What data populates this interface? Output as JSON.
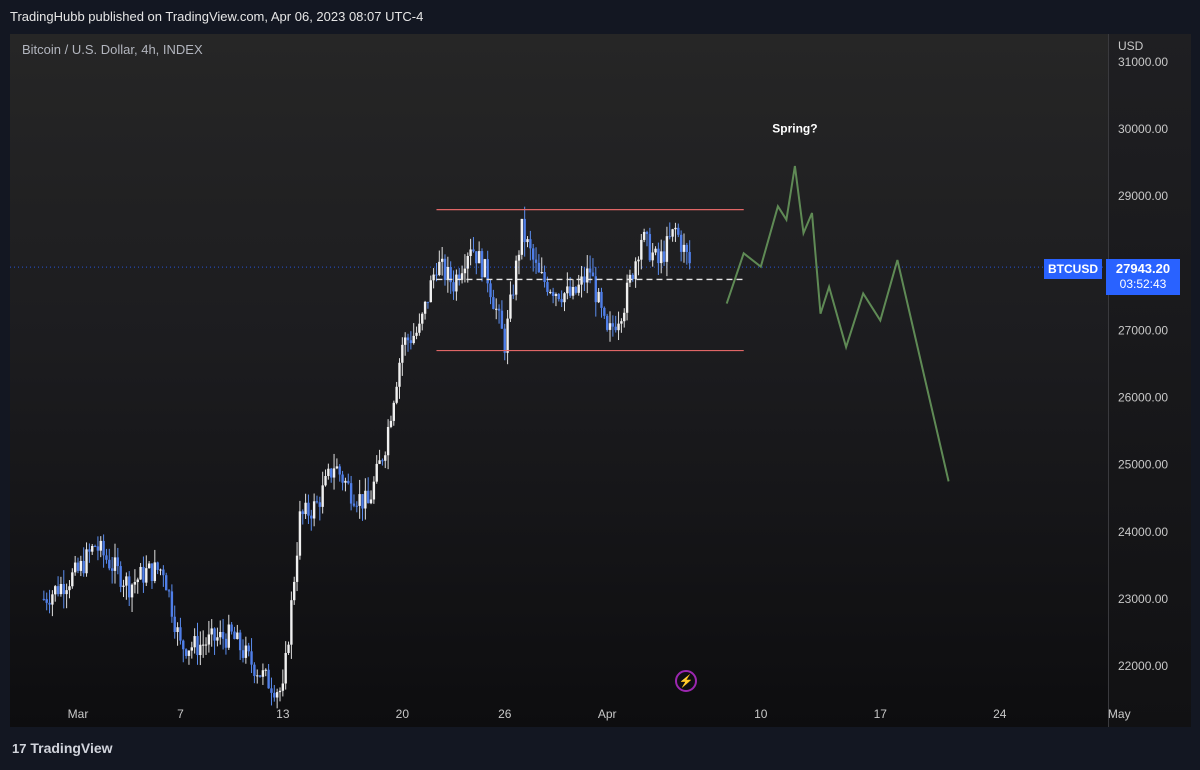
{
  "header": {
    "published_text": "TradingHubb published on TradingView.com, Apr 06, 2023 08:07 UTC-4"
  },
  "symbol": {
    "title": "Bitcoin / U.S. Dollar, 4h, INDEX"
  },
  "axis": {
    "currency": "USD"
  },
  "price_tag": {
    "symbol": "BTCUSD",
    "price": "27943.20",
    "countdown": "03:52:43"
  },
  "footer": {
    "brand": "TradingView"
  },
  "icons": {
    "logo": "tradingview-logo-icon",
    "ideas": "lightning-icon"
  },
  "colors": {
    "range_lines": "#e06666",
    "projection": "#5f8a55",
    "price_tag": "#2962ff"
  },
  "chart_data": {
    "type": "candlestick",
    "title": "Bitcoin / U.S. Dollar, 4h, INDEX",
    "y_unit": "USD",
    "ylim": [
      21600,
      31200
    ],
    "y_ticks": [
      "22000.00",
      "23000.00",
      "24000.00",
      "25000.00",
      "26000.00",
      "27000.00",
      "28000.00",
      "29000.00",
      "30000.00",
      "31000.00"
    ],
    "x_ticks": [
      "Mar",
      "7",
      "13",
      "20",
      "26",
      "Apr",
      "10",
      "17",
      "24",
      "May"
    ],
    "last_price": 27943.2,
    "ohlc_path": [
      [
        "2023-02-27",
        23000
      ],
      [
        "2023-03-01",
        23400
      ],
      [
        "2023-03-02",
        23800
      ],
      [
        "2023-03-03",
        23500
      ],
      [
        "2023-03-04",
        23200
      ],
      [
        "2023-03-05",
        23400
      ],
      [
        "2023-03-06",
        23450
      ],
      [
        "2023-03-07",
        22300
      ],
      [
        "2023-03-08",
        22300
      ],
      [
        "2023-03-09",
        22400
      ],
      [
        "2023-03-10",
        22450
      ],
      [
        "2023-03-11",
        22100
      ],
      [
        "2023-03-12",
        21800
      ],
      [
        "2023-03-13",
        21600
      ],
      [
        "2023-03-14",
        24200
      ],
      [
        "2023-03-15",
        24400
      ],
      [
        "2023-03-16",
        25000
      ],
      [
        "2023-03-17",
        24600
      ],
      [
        "2023-03-18",
        24400
      ],
      [
        "2023-03-19",
        25300
      ],
      [
        "2023-03-20",
        26800
      ],
      [
        "2023-03-21",
        27000
      ],
      [
        "2023-03-22",
        28000
      ],
      [
        "2023-03-23",
        27700
      ],
      [
        "2023-03-24",
        28300
      ],
      [
        "2023-03-25",
        27800
      ],
      [
        "2023-03-26",
        26800
      ],
      [
        "2023-03-27",
        28500
      ],
      [
        "2023-03-28",
        27800
      ],
      [
        "2023-03-29",
        27600
      ],
      [
        "2023-03-30",
        27500
      ],
      [
        "2023-03-31",
        27900
      ],
      [
        "2023-04-01",
        26900
      ],
      [
        "2023-04-02",
        27400
      ],
      [
        "2023-04-03",
        28400
      ],
      [
        "2023-04-04",
        28000
      ],
      [
        "2023-04-05",
        28500
      ],
      [
        "2023-04-06",
        27900
      ]
    ],
    "range_box": {
      "top": 28800,
      "bottom": 26700,
      "from": "2023-03-22",
      "to": "2023-04-09"
    },
    "midline": {
      "value": 27760,
      "from": "2023-03-22",
      "to": "2023-04-09"
    },
    "projection_path": [
      [
        "2023-04-08",
        27400
      ],
      [
        "2023-04-09",
        28150
      ],
      [
        "2023-04-10",
        27950
      ],
      [
        "2023-04-11",
        28850
      ],
      [
        "2023-04-11T12",
        28650
      ],
      [
        "2023-04-12",
        29450
      ],
      [
        "2023-04-12T12",
        28450
      ],
      [
        "2023-04-13",
        28750
      ],
      [
        "2023-04-13T12",
        27250
      ],
      [
        "2023-04-14",
        27650
      ],
      [
        "2023-04-15",
        26750
      ],
      [
        "2023-04-16",
        27550
      ],
      [
        "2023-04-17",
        27150
      ],
      [
        "2023-04-18",
        28050
      ],
      [
        "2023-04-21",
        24750
      ]
    ],
    "annotations": [
      {
        "text": "Spring?",
        "x": "2023-04-12",
        "y": 29950
      }
    ]
  }
}
